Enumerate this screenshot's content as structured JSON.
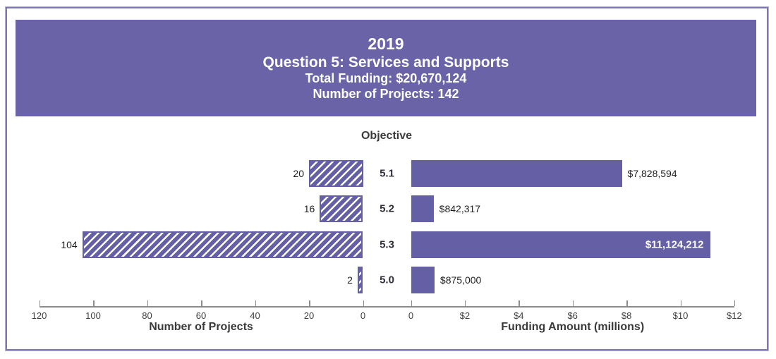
{
  "header": {
    "year": "2019",
    "title": "Question 5: Services and Supports",
    "total_funding": "Total Funding: $20,670,124",
    "number_of_projects": "Number of Projects: 142"
  },
  "chart_data": {
    "type": "bar",
    "variant": "diverging-tornado",
    "center_title": "Objective",
    "categories": [
      "5.1",
      "5.2",
      "5.3",
      "5.0"
    ],
    "series": [
      {
        "name": "Number of Projects",
        "side": "left",
        "style": "hatched",
        "values": [
          20,
          16,
          104,
          2
        ],
        "value_labels": [
          "20",
          "16",
          "104",
          "2"
        ]
      },
      {
        "name": "Funding Amount",
        "side": "right",
        "style": "solid",
        "values_usd": [
          7828594,
          842317,
          11124212,
          875000
        ],
        "value_labels": [
          "$7,828,594",
          "$842,317",
          "$11,124,212",
          "$875,000"
        ],
        "label_inside": [
          false,
          false,
          true,
          false
        ]
      }
    ],
    "left_axis": {
      "title": "Number of Projects",
      "tick_values": [
        120,
        100,
        80,
        60,
        40,
        20,
        0
      ],
      "tick_labels": [
        "120",
        "100",
        "80",
        "60",
        "40",
        "20",
        "0"
      ],
      "range": [
        0,
        120
      ],
      "direction": "reversed"
    },
    "right_axis": {
      "title": "Funding Amount (millions)",
      "tick_values_millions": [
        0,
        2,
        4,
        6,
        8,
        10,
        12
      ],
      "tick_labels": [
        "0",
        "$2",
        "$4",
        "$6",
        "$8",
        "$10",
        "$12"
      ],
      "range_millions": [
        0,
        12
      ]
    },
    "grid": "off",
    "legend": "none",
    "colors": {
      "header_bg": "#6a63a8",
      "bar": "#6560a6",
      "hatch_stripe": "#ffffff",
      "axis_line": "#8b8b8b",
      "tick_label": "#3e3e3e",
      "value_label": "#1f1f1f",
      "inside_value_label": "#ffffff",
      "frame_border": "#7c76b4"
    }
  }
}
